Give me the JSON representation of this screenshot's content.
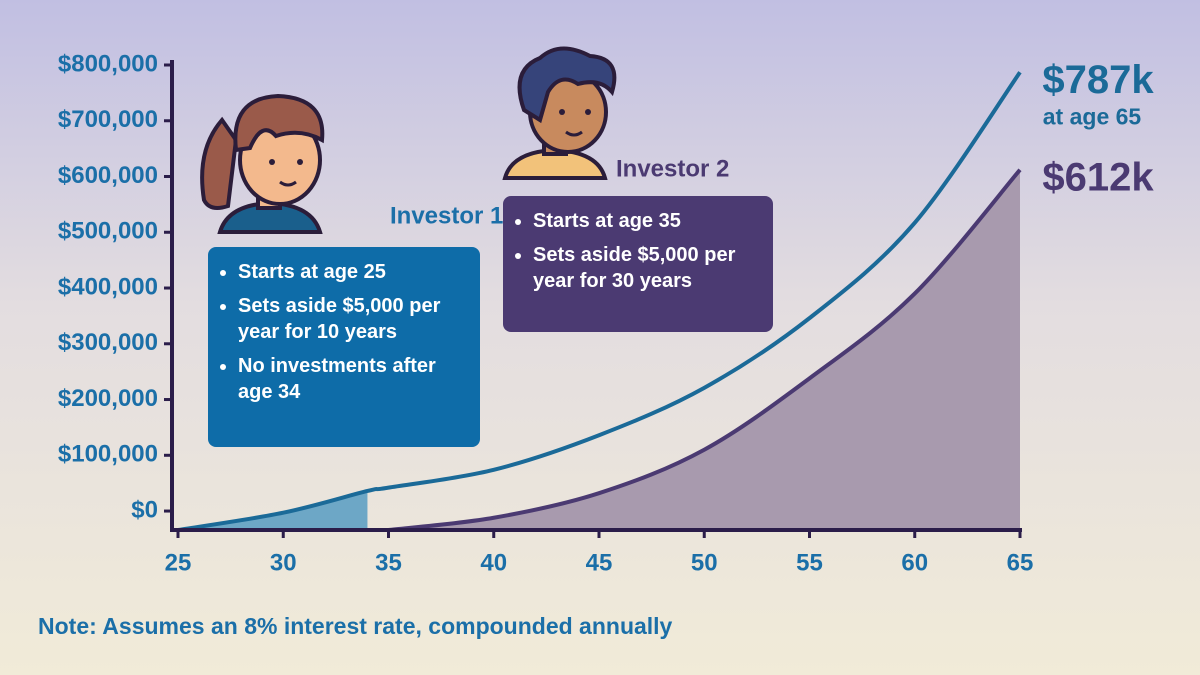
{
  "chart_data": {
    "type": "line",
    "x": [
      25,
      30,
      34,
      35,
      40,
      45,
      50,
      55,
      60,
      65
    ],
    "xlim": [
      25,
      65
    ],
    "xticks": [
      25,
      30,
      35,
      40,
      45,
      50,
      55,
      60,
      65
    ],
    "ylim": [
      -34000,
      800000
    ],
    "yticks": [
      {
        "value": 0,
        "label": "$0"
      },
      {
        "value": 100000,
        "label": "$100,000"
      },
      {
        "value": 200000,
        "label": "$200,000"
      },
      {
        "value": 300000,
        "label": "$300,000"
      },
      {
        "value": 400000,
        "label": "$400,000"
      },
      {
        "value": 500000,
        "label": "$500,000"
      },
      {
        "value": 600000,
        "label": "$600,000"
      },
      {
        "value": 700000,
        "label": "$700,000"
      },
      {
        "value": 800000,
        "label": "$800,000"
      }
    ],
    "series": [
      {
        "name": "Investor 1",
        "color": "#1b6a98",
        "area_color": "#6da7c6",
        "fill_to_x": 34,
        "box_color": "#0e6ca8",
        "values": [
          -34000,
          -3000,
          36000,
          42000,
          74000,
          136000,
          221000,
          346000,
          517000,
          787000
        ],
        "value_labels": [
          null,
          null,
          null,
          null,
          null,
          null,
          null,
          null,
          null,
          "$787k"
        ],
        "bullets": [
          "Starts at age 25",
          "Sets aside $5,000 per year for 10 years",
          "No investments after age 34"
        ]
      },
      {
        "name": "Investor 2",
        "color": "#4b3a72",
        "area_color": "#a89aae",
        "fill_to_x": 65,
        "box_color": "#4b3a72",
        "values": [
          null,
          null,
          null,
          -34000,
          -12000,
          32000,
          110000,
          238000,
          390000,
          612000
        ],
        "value_labels": [
          null,
          null,
          null,
          null,
          null,
          null,
          null,
          null,
          null,
          "$612k"
        ],
        "bullets": [
          "Starts at age 35",
          "Sets aside $5,000 per year for 30 years"
        ]
      }
    ],
    "end_note": "at age 65",
    "note": "Note: Assumes an 8% interest rate, compounded annually"
  }
}
